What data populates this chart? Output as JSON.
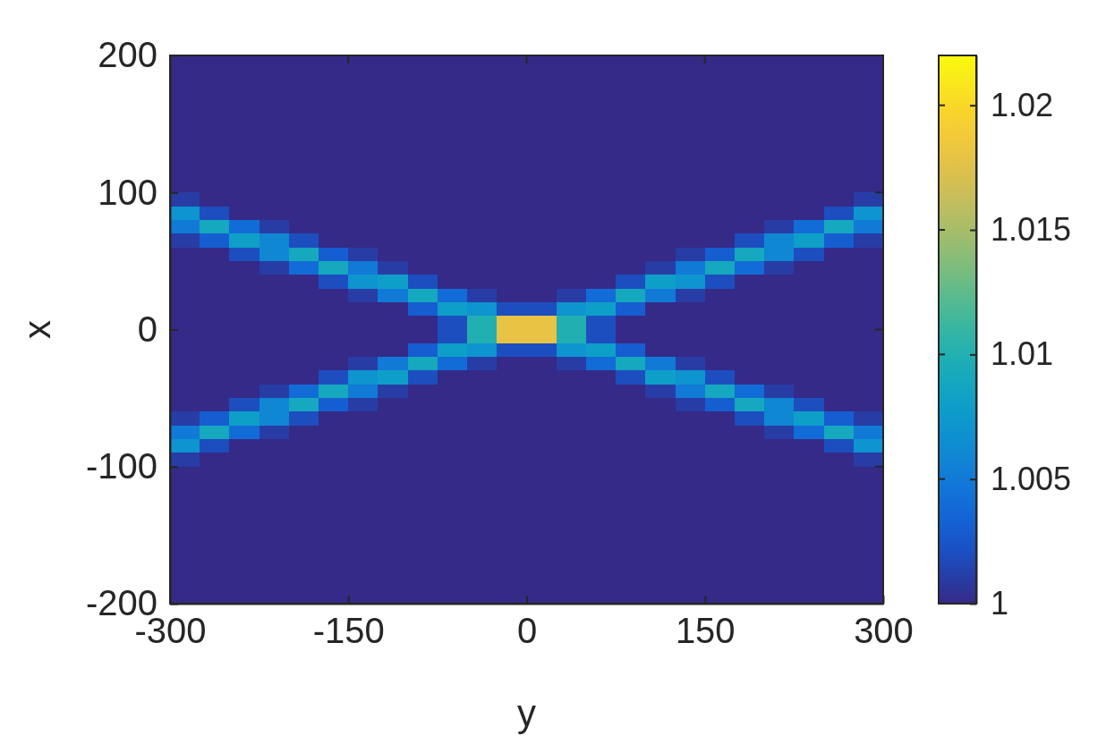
{
  "chart_data": {
    "type": "heatmap",
    "xlabel": "y",
    "ylabel": "x",
    "x": [
      -287.5,
      -262.5,
      -237.5,
      -212.5,
      -187.5,
      -162.5,
      -137.5,
      -112.5,
      -87.5,
      -62.5,
      -37.5,
      -12.5,
      12.5,
      37.5,
      62.5,
      87.5,
      112.5,
      137.5,
      162.5,
      187.5,
      212.5,
      237.5,
      262.5,
      287.5
    ],
    "y": [
      195,
      185,
      175,
      165,
      155,
      145,
      135,
      125,
      115,
      105,
      95,
      85,
      75,
      65,
      55,
      45,
      35,
      25,
      15,
      5,
      -5,
      -15,
      -25,
      -35,
      -45,
      -55,
      -65,
      -75,
      -85,
      -95,
      -105,
      -115,
      -125,
      -135,
      -145,
      -155,
      -165,
      -175,
      -185,
      -195
    ],
    "xlim": [
      -300,
      300
    ],
    "xticks": [
      -300,
      -150,
      0,
      150,
      300
    ],
    "ylim": [
      -200,
      200
    ],
    "yticks": [
      -200,
      -100,
      0,
      100,
      200
    ],
    "clim": [
      1,
      1.022
    ],
    "cticks": [
      1,
      1.005,
      1.01,
      1.015,
      1.02
    ],
    "cells": [
      [
        1,
        1,
        1,
        1,
        1,
        1,
        1,
        1,
        1,
        1,
        1,
        1,
        1,
        1,
        1,
        1,
        1,
        1,
        1,
        1,
        1,
        1,
        1,
        1
      ],
      [
        1,
        1,
        1,
        1,
        1,
        1,
        1,
        1,
        1,
        1,
        1,
        1,
        1,
        1,
        1,
        1,
        1,
        1,
        1,
        1,
        1,
        1,
        1,
        1
      ],
      [
        1,
        1,
        1,
        1,
        1,
        1,
        1,
        1,
        1,
        1,
        1,
        1,
        1,
        1,
        1,
        1,
        1,
        1,
        1,
        1,
        1,
        1,
        1,
        1
      ],
      [
        1,
        1,
        1,
        1,
        1,
        1,
        1,
        1,
        1,
        1,
        1,
        1,
        1,
        1,
        1,
        1,
        1,
        1,
        1,
        1,
        1,
        1,
        1,
        1
      ],
      [
        1,
        1,
        1,
        1,
        1,
        1,
        1,
        1,
        1,
        1,
        1,
        1,
        1,
        1,
        1,
        1,
        1,
        1,
        1,
        1,
        1,
        1,
        1,
        1
      ],
      [
        1,
        1,
        1,
        1,
        1,
        1,
        1,
        1,
        1,
        1,
        1,
        1,
        1,
        1,
        1,
        1,
        1,
        1,
        1,
        1,
        1,
        1,
        1,
        1
      ],
      [
        1,
        1,
        1,
        1,
        1,
        1,
        1,
        1,
        1,
        1,
        1,
        1,
        1,
        1,
        1,
        1,
        1,
        1,
        1,
        1,
        1,
        1,
        1,
        1
      ],
      [
        1,
        1,
        1,
        1,
        1,
        1,
        1,
        1,
        1,
        1,
        1,
        1,
        1,
        1,
        1,
        1,
        1,
        1,
        1,
        1,
        1,
        1,
        1,
        1
      ],
      [
        1,
        1,
        1,
        1,
        1,
        1,
        1,
        1,
        1,
        1,
        1,
        1,
        1,
        1,
        1,
        1,
        1,
        1,
        1,
        1,
        1,
        1,
        1,
        1
      ],
      [
        1,
        1,
        1,
        1,
        1,
        1,
        1,
        1,
        1,
        1,
        1,
        1,
        1,
        1,
        1,
        1,
        1,
        1,
        1,
        1,
        1,
        1,
        1,
        1
      ],
      [
        1.001,
        1,
        1,
        1,
        1,
        1,
        1,
        1,
        1,
        1,
        1,
        1,
        1,
        1,
        1,
        1,
        1,
        1,
        1,
        1,
        1,
        1,
        1,
        1.001
      ],
      [
        1.007,
        1.002,
        1,
        1,
        1,
        1,
        1,
        1,
        1,
        1,
        1,
        1,
        1,
        1,
        1,
        1,
        1,
        1,
        1,
        1,
        1,
        1,
        1.002,
        1.007
      ],
      [
        1.005,
        1.009,
        1.004,
        1.001,
        1,
        1,
        1,
        1,
        1,
        1,
        1,
        1,
        1,
        1,
        1,
        1,
        1,
        1,
        1,
        1,
        1.001,
        1.004,
        1.009,
        1.005
      ],
      [
        1.001,
        1.003,
        1.008,
        1.006,
        1.002,
        1,
        1,
        1,
        1,
        1,
        1,
        1,
        1,
        1,
        1,
        1,
        1,
        1,
        1,
        1.002,
        1.006,
        1.008,
        1.003,
        1.001
      ],
      [
        1,
        1,
        1.002,
        1.006,
        1.009,
        1.003,
        1.001,
        1,
        1,
        1,
        1,
        1,
        1,
        1,
        1,
        1,
        1,
        1.001,
        1.003,
        1.009,
        1.006,
        1.002,
        1,
        1
      ],
      [
        1,
        1,
        1,
        1.001,
        1.004,
        1.009,
        1.005,
        1.001,
        1,
        1,
        1,
        1,
        1,
        1,
        1,
        1,
        1.001,
        1.005,
        1.009,
        1.004,
        1.001,
        1,
        1,
        1
      ],
      [
        1,
        1,
        1,
        1,
        1,
        1.002,
        1.007,
        1.008,
        1.002,
        1,
        1,
        1,
        1,
        1,
        1,
        1.002,
        1.008,
        1.007,
        1.002,
        1,
        1,
        1,
        1,
        1
      ],
      [
        1,
        1,
        1,
        1,
        1,
        1,
        1.001,
        1.005,
        1.009,
        1.004,
        1.001,
        1,
        1,
        1.001,
        1.004,
        1.009,
        1.005,
        1.001,
        1,
        1,
        1,
        1,
        1,
        1
      ],
      [
        1,
        1,
        1,
        1,
        1,
        1,
        1,
        1,
        1.003,
        1.008,
        1.007,
        1.002,
        1.002,
        1.007,
        1.008,
        1.003,
        1,
        1,
        1,
        1,
        1,
        1,
        1,
        1
      ],
      [
        1,
        1,
        1,
        1,
        1,
        1,
        1,
        1,
        1,
        1.002,
        1.01,
        1.018,
        1.018,
        1.01,
        1.002,
        1,
        1,
        1,
        1,
        1,
        1,
        1,
        1,
        1
      ],
      [
        1,
        1,
        1,
        1,
        1,
        1,
        1,
        1,
        1,
        1.002,
        1.01,
        1.018,
        1.018,
        1.01,
        1.002,
        1,
        1,
        1,
        1,
        1,
        1,
        1,
        1,
        1
      ],
      [
        1,
        1,
        1,
        1,
        1,
        1,
        1,
        1,
        1.003,
        1.008,
        1.007,
        1.002,
        1.002,
        1.007,
        1.008,
        1.003,
        1,
        1,
        1,
        1,
        1,
        1,
        1,
        1
      ],
      [
        1,
        1,
        1,
        1,
        1,
        1,
        1.001,
        1.005,
        1.009,
        1.004,
        1.001,
        1,
        1,
        1.001,
        1.004,
        1.009,
        1.005,
        1.001,
        1,
        1,
        1,
        1,
        1,
        1
      ],
      [
        1,
        1,
        1,
        1,
        1,
        1.002,
        1.007,
        1.008,
        1.002,
        1,
        1,
        1,
        1,
        1,
        1,
        1.002,
        1.008,
        1.007,
        1.002,
        1,
        1,
        1,
        1,
        1
      ],
      [
        1,
        1,
        1,
        1.001,
        1.004,
        1.009,
        1.005,
        1.001,
        1,
        1,
        1,
        1,
        1,
        1,
        1,
        1,
        1.001,
        1.005,
        1.009,
        1.004,
        1.001,
        1,
        1,
        1
      ],
      [
        1,
        1,
        1.002,
        1.006,
        1.009,
        1.003,
        1.001,
        1,
        1,
        1,
        1,
        1,
        1,
        1,
        1,
        1,
        1,
        1.001,
        1.003,
        1.009,
        1.006,
        1.002,
        1,
        1
      ],
      [
        1.001,
        1.003,
        1.008,
        1.006,
        1.002,
        1,
        1,
        1,
        1,
        1,
        1,
        1,
        1,
        1,
        1,
        1,
        1,
        1,
        1,
        1.002,
        1.006,
        1.008,
        1.003,
        1.001
      ],
      [
        1.005,
        1.009,
        1.004,
        1.001,
        1,
        1,
        1,
        1,
        1,
        1,
        1,
        1,
        1,
        1,
        1,
        1,
        1,
        1,
        1,
        1,
        1.001,
        1.004,
        1.009,
        1.005
      ],
      [
        1.007,
        1.002,
        1,
        1,
        1,
        1,
        1,
        1,
        1,
        1,
        1,
        1,
        1,
        1,
        1,
        1,
        1,
        1,
        1,
        1,
        1,
        1,
        1.002,
        1.007
      ],
      [
        1.001,
        1,
        1,
        1,
        1,
        1,
        1,
        1,
        1,
        1,
        1,
        1,
        1,
        1,
        1,
        1,
        1,
        1,
        1,
        1,
        1,
        1,
        1,
        1.001
      ],
      [
        1,
        1,
        1,
        1,
        1,
        1,
        1,
        1,
        1,
        1,
        1,
        1,
        1,
        1,
        1,
        1,
        1,
        1,
        1,
        1,
        1,
        1,
        1,
        1
      ],
      [
        1,
        1,
        1,
        1,
        1,
        1,
        1,
        1,
        1,
        1,
        1,
        1,
        1,
        1,
        1,
        1,
        1,
        1,
        1,
        1,
        1,
        1,
        1,
        1
      ],
      [
        1,
        1,
        1,
        1,
        1,
        1,
        1,
        1,
        1,
        1,
        1,
        1,
        1,
        1,
        1,
        1,
        1,
        1,
        1,
        1,
        1,
        1,
        1,
        1
      ],
      [
        1,
        1,
        1,
        1,
        1,
        1,
        1,
        1,
        1,
        1,
        1,
        1,
        1,
        1,
        1,
        1,
        1,
        1,
        1,
        1,
        1,
        1,
        1,
        1
      ],
      [
        1,
        1,
        1,
        1,
        1,
        1,
        1,
        1,
        1,
        1,
        1,
        1,
        1,
        1,
        1,
        1,
        1,
        1,
        1,
        1,
        1,
        1,
        1,
        1
      ],
      [
        1,
        1,
        1,
        1,
        1,
        1,
        1,
        1,
        1,
        1,
        1,
        1,
        1,
        1,
        1,
        1,
        1,
        1,
        1,
        1,
        1,
        1,
        1,
        1
      ],
      [
        1,
        1,
        1,
        1,
        1,
        1,
        1,
        1,
        1,
        1,
        1,
        1,
        1,
        1,
        1,
        1,
        1,
        1,
        1,
        1,
        1,
        1,
        1,
        1
      ],
      [
        1,
        1,
        1,
        1,
        1,
        1,
        1,
        1,
        1,
        1,
        1,
        1,
        1,
        1,
        1,
        1,
        1,
        1,
        1,
        1,
        1,
        1,
        1,
        1
      ],
      [
        1,
        1,
        1,
        1,
        1,
        1,
        1,
        1,
        1,
        1,
        1,
        1,
        1,
        1,
        1,
        1,
        1,
        1,
        1,
        1,
        1,
        1,
        1,
        1
      ],
      [
        1,
        1,
        1,
        1,
        1,
        1,
        1,
        1,
        1,
        1,
        1,
        1,
        1,
        1,
        1,
        1,
        1,
        1,
        1,
        1,
        1,
        1,
        1,
        1
      ]
    ]
  }
}
